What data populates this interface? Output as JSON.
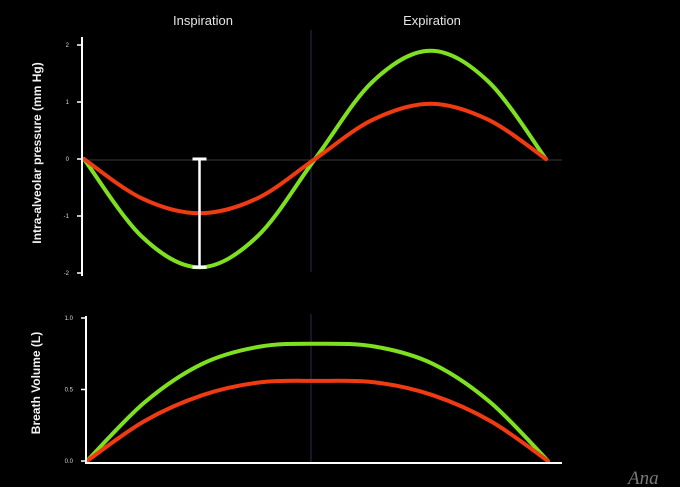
{
  "watermark": "Ana",
  "colors": {
    "background": "#000000",
    "green": "#7fe020",
    "red": "#f03a12",
    "axis": "#ffffff",
    "divider": "#2c2c52",
    "zero_line": "#3a3a3a"
  },
  "phases": [
    "Inspiration",
    "Expiration"
  ],
  "chart_data": [
    {
      "type": "line",
      "ylabel": "Intra-alveolar pressure (mm Hg)",
      "yticks": [
        "2",
        "1",
        "0",
        "-1",
        "-2"
      ],
      "ylim": [
        -2,
        2
      ],
      "x": [
        0,
        0.125,
        0.25,
        0.375,
        0.5,
        0.625,
        0.75,
        0.875,
        1.0
      ],
      "series": [
        {
          "color": "#7fe020",
          "values": [
            0,
            -1.36,
            -1.9,
            -1.36,
            0,
            1.36,
            1.9,
            1.36,
            0
          ]
        },
        {
          "color": "#f03a12",
          "values": [
            0,
            -0.69,
            -0.95,
            -0.69,
            0,
            0.69,
            0.97,
            0.69,
            0
          ]
        }
      ],
      "annotation": {
        "type": "range-bar",
        "x": 0.25,
        "from": 0,
        "to": -1.9,
        "color": "#ffffff"
      }
    },
    {
      "type": "line",
      "ylabel": "Breath Volume (L)",
      "yticks": [
        "1.0",
        "0.5",
        "0.0"
      ],
      "ylim": [
        0,
        1
      ],
      "x": [
        0,
        0.125,
        0.25,
        0.375,
        0.5,
        0.625,
        0.75,
        0.875,
        1.0
      ],
      "series": [
        {
          "color": "#7fe020",
          "values": [
            0,
            0.41,
            0.68,
            0.8,
            0.82,
            0.8,
            0.68,
            0.41,
            0
          ]
        },
        {
          "color": "#f03a12",
          "values": [
            0,
            0.28,
            0.46,
            0.55,
            0.56,
            0.55,
            0.46,
            0.28,
            0
          ]
        }
      ]
    }
  ]
}
